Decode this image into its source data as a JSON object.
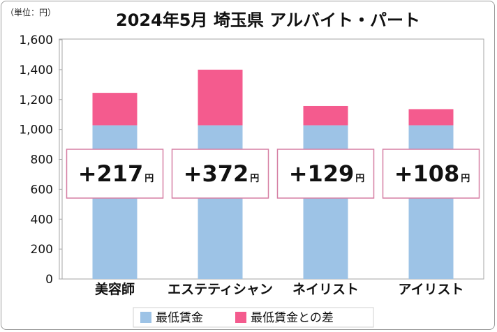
{
  "chart_data": {
    "type": "bar",
    "stacked": true,
    "title": "2024年5月 埼玉県 アルバイト・パート",
    "unit_label": "（単位：円）",
    "categories": [
      "美容師",
      "エステティシャン",
      "ネイリスト",
      "アイリスト"
    ],
    "series": [
      {
        "name": "最低賃金",
        "values": [
          1028,
          1028,
          1028,
          1028
        ],
        "color": "#9dc3e6"
      },
      {
        "name": "最低賃金との差",
        "values": [
          217,
          372,
          129,
          108
        ],
        "color": "#f45b8e"
      }
    ],
    "annotations": [
      {
        "number": "+217",
        "suffix": "円"
      },
      {
        "number": "+372",
        "suffix": "円"
      },
      {
        "number": "+129",
        "suffix": "円"
      },
      {
        "number": "+108",
        "suffix": "円"
      }
    ],
    "yticks": [
      "0",
      "200",
      "400",
      "600",
      "800",
      "1,000",
      "1,200",
      "1,400",
      "1,600"
    ],
    "ylim": [
      0,
      1600
    ],
    "grid": false,
    "legend_position": "bottom"
  }
}
